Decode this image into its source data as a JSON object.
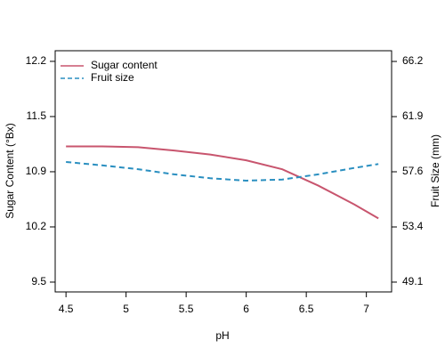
{
  "chart_data": {
    "type": "line",
    "xlabel": "pH",
    "ylabel": "Sugar Content (°Bx)",
    "y2label": "Fruit Size (mm)",
    "x": [
      4.5,
      4.8,
      5.1,
      5.4,
      5.7,
      6.0,
      6.3,
      6.6,
      6.9,
      7.1
    ],
    "series": [
      {
        "name": "Sugar content",
        "color": "#c8556e",
        "dash": false,
        "values": [
          11.16,
          11.16,
          11.15,
          11.11,
          11.06,
          10.99,
          10.88,
          10.68,
          10.45,
          10.28
        ]
      },
      {
        "name": "Fruit size",
        "color": "#2a8fc0",
        "dash": true,
        "axis": "y2",
        "values": [
          58.41,
          58.15,
          57.85,
          57.45,
          57.15,
          56.96,
          57.05,
          57.45,
          57.95,
          58.25
        ]
      }
    ],
    "xlim": [
      4.41,
      7.21
    ],
    "xticks": [
      4.5,
      5.0,
      5.5,
      6.0,
      6.5,
      7.0
    ],
    "ylim": [
      9.38,
      12.33
    ],
    "yticks": [
      {
        "value": 9.5,
        "label": "9.5"
      },
      {
        "value": 10.175,
        "label": "10.2"
      },
      {
        "value": 10.85,
        "label": "10.9"
      },
      {
        "value": 11.525,
        "label": "11.5"
      },
      {
        "value": 12.2,
        "label": "12.2"
      }
    ],
    "y2lim": [
      48.34,
      67.03
    ],
    "y2ticks": [
      {
        "value": 49.1,
        "label": "49.1"
      },
      {
        "value": 53.375,
        "label": "53.4"
      },
      {
        "value": 57.65,
        "label": "57.6"
      },
      {
        "value": 61.925,
        "label": "61.9"
      },
      {
        "value": 66.2,
        "label": "66.2"
      }
    ],
    "legend": "upper left"
  }
}
